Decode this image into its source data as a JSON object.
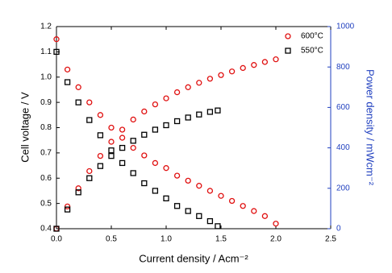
{
  "chart_data": {
    "type": "scatter",
    "xlabel": "Current density / Acm⁻²",
    "ylabel": "Cell voltage / V",
    "y2label": "Power density / mWcm⁻²",
    "xlim": [
      0,
      2.5
    ],
    "xticks": [
      {
        "value": 0,
        "label": "0.0"
      },
      0.5,
      {
        "value": 1,
        "label": "1.0"
      },
      1.5,
      {
        "value": 2,
        "label": "2.0"
      },
      2.5
    ],
    "ylim": [
      0.4,
      1.2
    ],
    "yticks": [
      0.4,
      0.5,
      0.6,
      0.7,
      0.8,
      0.9,
      {
        "value": 1,
        "label": "1.0"
      },
      1.1,
      1.2
    ],
    "y2lim": [
      0,
      1000
    ],
    "y2ticks": [
      0,
      200,
      400,
      600,
      800,
      1000
    ],
    "y2color": "#1f3fbf",
    "legend": "upper right",
    "series": [
      {
        "name": "600°C",
        "color": "#e01010",
        "marker": "circle",
        "x": [
          0,
          0.1,
          0.2,
          0.3,
          0.4,
          0.5,
          0.6,
          0.7,
          0.8,
          0.9,
          1.0,
          1.1,
          1.2,
          1.3,
          1.4,
          1.5,
          1.6,
          1.7,
          1.8,
          1.9,
          2.0
        ],
        "values": [
          1.15,
          1.03,
          0.96,
          0.9,
          0.85,
          0.8,
          0.76,
          0.72,
          0.69,
          0.66,
          0.64,
          0.61,
          0.59,
          0.57,
          0.55,
          0.53,
          0.51,
          0.49,
          0.47,
          0.45,
          0.42
        ]
      },
      {
        "name": "550°C",
        "color": "#000000",
        "marker": "square",
        "x": [
          0,
          0.1,
          0.2,
          0.3,
          0.4,
          0.5,
          0.6,
          0.7,
          0.8,
          0.9,
          1.0,
          1.1,
          1.2,
          1.3,
          1.4,
          1.47
        ],
        "values": [
          1.1,
          0.98,
          0.9,
          0.83,
          0.77,
          0.71,
          0.66,
          0.62,
          0.58,
          0.55,
          0.52,
          0.49,
          0.47,
          0.45,
          0.43,
          0.41
        ]
      },
      {
        "color": "#e01010",
        "marker": "circle",
        "axis": "y2",
        "x": [
          0,
          0.1,
          0.2,
          0.3,
          0.4,
          0.5,
          0.6,
          0.7,
          0.8,
          0.9,
          1.0,
          1.1,
          1.2,
          1.3,
          1.4,
          1.5,
          1.6,
          1.7,
          1.8,
          1.9,
          2.0
        ],
        "values": [
          0,
          110,
          200,
          285,
          360,
          430,
          490,
          540,
          580,
          615,
          645,
          675,
          700,
          722,
          742,
          760,
          778,
          795,
          810,
          825,
          838
        ]
      },
      {
        "color": "#000000",
        "marker": "square",
        "axis": "y2",
        "x": [
          0,
          0.1,
          0.2,
          0.3,
          0.4,
          0.5,
          0.6,
          0.7,
          0.8,
          0.9,
          1.0,
          1.1,
          1.2,
          1.3,
          1.4,
          1.47
        ],
        "values": [
          0,
          95,
          180,
          250,
          310,
          360,
          400,
          435,
          465,
          490,
          512,
          532,
          550,
          565,
          578,
          585
        ]
      }
    ]
  }
}
